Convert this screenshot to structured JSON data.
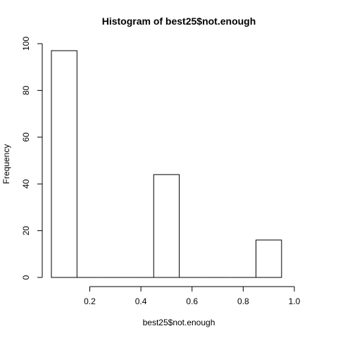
{
  "chart_data": {
    "type": "bar",
    "title": "Histogram of best25$not.enough",
    "xlabel": "best25$not.enough",
    "ylabel": "Frequency",
    "bins": [
      {
        "start": 0.05,
        "end": 0.15,
        "count": 97
      },
      {
        "start": 0.15,
        "end": 0.25,
        "count": 0
      },
      {
        "start": 0.25,
        "end": 0.35,
        "count": 0
      },
      {
        "start": 0.35,
        "end": 0.45,
        "count": 0
      },
      {
        "start": 0.45,
        "end": 0.55,
        "count": 44
      },
      {
        "start": 0.55,
        "end": 0.65,
        "count": 0
      },
      {
        "start": 0.65,
        "end": 0.75,
        "count": 0
      },
      {
        "start": 0.75,
        "end": 0.85,
        "count": 0
      },
      {
        "start": 0.85,
        "end": 0.95,
        "count": 16
      }
    ],
    "xticks": [
      "0.2",
      "0.4",
      "0.6",
      "0.8",
      "1.0"
    ],
    "yticks": [
      "0",
      "20",
      "40",
      "60",
      "80",
      "100"
    ],
    "xlim": [
      0.05,
      1.0
    ],
    "ylim": [
      0,
      100
    ],
    "grid": false
  }
}
